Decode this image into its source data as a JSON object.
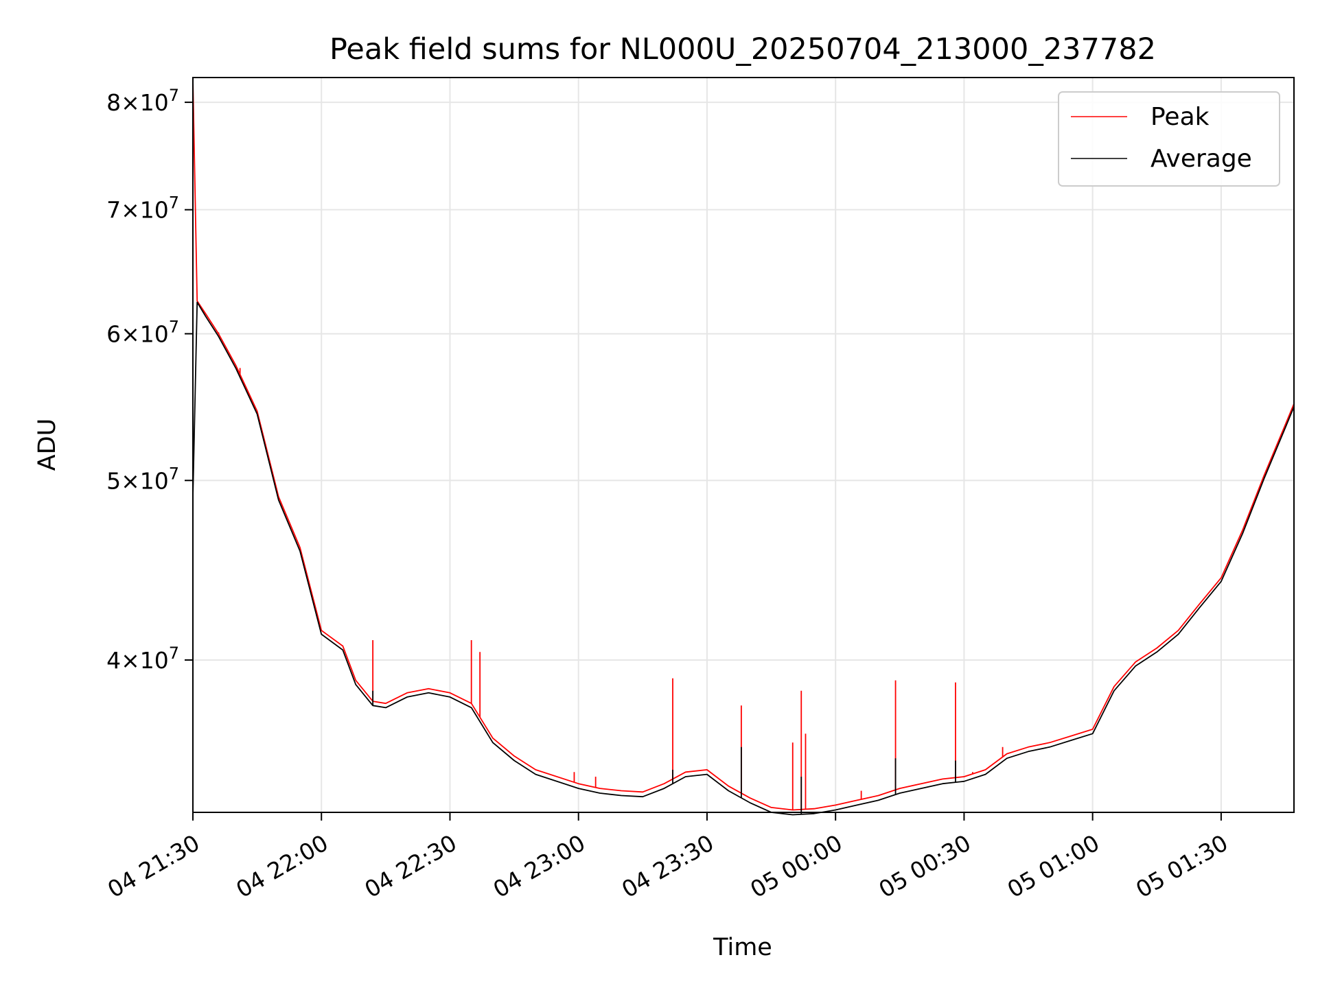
{
  "chart_data": {
    "type": "line",
    "title": "Peak field sums for NL000U_20250704_213000_237782",
    "xlabel": "Time",
    "ylabel": "ADU",
    "y_scale": "log",
    "ylim": [
      33100000,
      82500000
    ],
    "xlim": [
      "04 21:30",
      "05 01:47"
    ],
    "grid": true,
    "legend_position": "top-right",
    "colors": {
      "Peak": "#ff0000",
      "Average": "#000000"
    },
    "x_ticks": [
      "04 21:30",
      "04 22:00",
      "04 22:30",
      "04 23:00",
      "04 23:30",
      "05 00:00",
      "05 00:30",
      "05 01:00",
      "05 01:30"
    ],
    "y_ticks": [
      {
        "value": 40000000,
        "mantissa": "4",
        "exp": "7"
      },
      {
        "value": 50000000,
        "mantissa": "5",
        "exp": "7"
      },
      {
        "value": 60000000,
        "mantissa": "6",
        "exp": "7"
      },
      {
        "value": 70000000,
        "mantissa": "7",
        "exp": "7"
      },
      {
        "value": 80000000,
        "mantissa": "8",
        "exp": "7"
      }
    ],
    "series": [
      {
        "name": "Peak",
        "x": [
          "04 21:30",
          "04 21:31",
          "04 21:33",
          "04 21:36",
          "04 21:40",
          "04 21:45",
          "04 21:50",
          "04 21:55",
          "04 22:00",
          "04 22:05",
          "04 22:08",
          "04 22:12",
          "04 22:15",
          "04 22:20",
          "04 22:25",
          "04 22:30",
          "04 22:35",
          "04 22:40",
          "04 22:45",
          "04 22:50",
          "04 23:00",
          "04 23:05",
          "04 23:10",
          "04 23:15",
          "04 23:20",
          "04 23:25",
          "04 23:30",
          "04 23:35",
          "04 23:40",
          "04 23:45",
          "04 23:50",
          "04 23:55",
          "05 00:00",
          "05 00:05",
          "05 00:10",
          "05 00:15",
          "05 00:20",
          "05 00:25",
          "05 00:30",
          "05 00:35",
          "05 00:40",
          "05 00:45",
          "05 00:50",
          "05 00:55",
          "05 01:00",
          "05 01:05",
          "05 01:10",
          "05 01:15",
          "05 01:20",
          "05 01:25",
          "05 01:30",
          "05 01:35",
          "05 01:40",
          "05 01:45",
          "05 01:47"
        ],
        "values": [
          82300000,
          62500000,
          61500000,
          60000000,
          57700000,
          54500000,
          49000000,
          46000000,
          41500000,
          40700000,
          39000000,
          38000000,
          37900000,
          38400000,
          38600000,
          38400000,
          37900000,
          36300000,
          35500000,
          34900000,
          34300000,
          34100000,
          34000000,
          33950000,
          34300000,
          34800000,
          34900000,
          34200000,
          33700000,
          33300000,
          33200000,
          33250000,
          33400000,
          33600000,
          33800000,
          34100000,
          34300000,
          34500000,
          34600000,
          34900000,
          35600000,
          35900000,
          36100000,
          36400000,
          36700000,
          38700000,
          39900000,
          40600000,
          41500000,
          42900000,
          44300000,
          47000000,
          50300000,
          53600000,
          55000000
        ]
      },
      {
        "name": "Average",
        "x": [
          "04 21:30",
          "04 21:31",
          "04 21:33",
          "04 21:36",
          "04 21:40",
          "04 21:45",
          "04 21:50",
          "04 21:55",
          "04 22:00",
          "04 22:05",
          "04 22:08",
          "04 22:12",
          "04 22:15",
          "04 22:20",
          "04 22:25",
          "04 22:30",
          "04 22:35",
          "04 22:40",
          "04 22:45",
          "04 22:50",
          "04 23:00",
          "04 23:05",
          "04 23:10",
          "04 23:15",
          "04 23:20",
          "04 23:25",
          "04 23:30",
          "04 23:35",
          "04 23:40",
          "04 23:45",
          "04 23:50",
          "04 23:55",
          "05 00:00",
          "05 00:05",
          "05 00:10",
          "05 00:15",
          "05 00:20",
          "05 00:25",
          "05 00:30",
          "05 00:35",
          "05 00:40",
          "05 00:45",
          "05 00:50",
          "05 00:55",
          "05 01:00",
          "05 01:05",
          "05 01:10",
          "05 01:15",
          "05 01:20",
          "05 01:25",
          "05 01:30",
          "05 01:35",
          "05 01:40",
          "05 01:45",
          "05 01:47"
        ],
        "values": [
          49000000,
          62400000,
          61300000,
          59800000,
          57500000,
          54300000,
          48800000,
          45800000,
          41300000,
          40500000,
          38800000,
          37800000,
          37700000,
          38200000,
          38400000,
          38200000,
          37700000,
          36100000,
          35300000,
          34700000,
          34100000,
          33900000,
          33800000,
          33750000,
          34100000,
          34600000,
          34700000,
          34000000,
          33500000,
          33100000,
          33000000,
          33050000,
          33200000,
          33400000,
          33600000,
          33900000,
          34100000,
          34300000,
          34400000,
          34700000,
          35400000,
          35700000,
          35900000,
          36200000,
          36500000,
          38500000,
          39700000,
          40400000,
          41300000,
          42700000,
          44100000,
          46800000,
          50100000,
          53400000,
          54800000
        ]
      }
    ],
    "spikes": [
      {
        "series": "Peak",
        "x": "04 21:36",
        "value": 60100000
      },
      {
        "series": "Peak",
        "x": "04 21:41",
        "value": 57500000
      },
      {
        "series": "Peak",
        "x": "04 22:12",
        "value": 41000000
      },
      {
        "series": "Peak",
        "x": "04 22:35",
        "value": 41000000
      },
      {
        "series": "Peak",
        "x": "04 22:37",
        "value": 40400000
      },
      {
        "series": "Peak",
        "x": "04 22:59",
        "value": 34800000
      },
      {
        "series": "Peak",
        "x": "04 23:04",
        "value": 34600000
      },
      {
        "series": "Peak",
        "x": "04 23:22",
        "value": 39100000
      },
      {
        "series": "Peak",
        "x": "04 23:38",
        "value": 37800000
      },
      {
        "series": "Peak",
        "x": "04 23:50",
        "value": 36100000
      },
      {
        "series": "Peak",
        "x": "04 23:52",
        "value": 38500000
      },
      {
        "series": "Peak",
        "x": "04 23:53",
        "value": 36500000
      },
      {
        "series": "Peak",
        "x": "05 00:06",
        "value": 34000000
      },
      {
        "series": "Peak",
        "x": "05 00:14",
        "value": 39000000
      },
      {
        "series": "Peak",
        "x": "05 00:28",
        "value": 38900000
      },
      {
        "series": "Peak",
        "x": "05 00:32",
        "value": 34800000
      },
      {
        "series": "Peak",
        "x": "05 00:39",
        "value": 35900000
      },
      {
        "series": "Average",
        "x": "04 22:12",
        "value": 38500000
      },
      {
        "series": "Average",
        "x": "04 23:22",
        "value": 34900000
      },
      {
        "series": "Average",
        "x": "04 23:38",
        "value": 35900000
      },
      {
        "series": "Average",
        "x": "04 23:52",
        "value": 34600000
      },
      {
        "series": "Average",
        "x": "05 00:14",
        "value": 35400000
      },
      {
        "series": "Average",
        "x": "05 00:28",
        "value": 35300000
      }
    ]
  }
}
